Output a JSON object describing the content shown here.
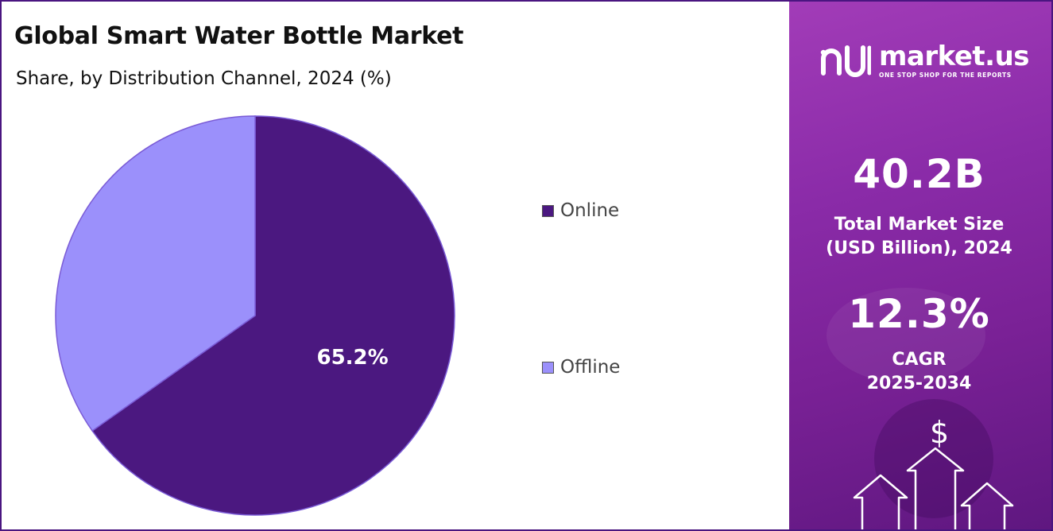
{
  "chart_data": {
    "type": "pie",
    "title": "Global Smart Water Bottle Market",
    "subtitle": "Share, by Distribution Channel, 2024 (%)",
    "series": [
      {
        "name": "Online",
        "value": 65.2,
        "color": "#4b1880",
        "label": "65.2%"
      },
      {
        "name": "Offline",
        "value": 34.8,
        "color": "#9b90fb",
        "label": ""
      }
    ],
    "legend_position": "right"
  },
  "sidebar": {
    "brand_name": "market.us",
    "brand_tagline": "ONE STOP SHOP FOR THE REPORTS",
    "market_size_value": "40.2B",
    "market_size_label_line1": "Total Market Size",
    "market_size_label_line2": "(USD Billion), 2024",
    "cagr_value": "12.3%",
    "cagr_label_line1": "CAGR",
    "cagr_label_line2": "2025-2034",
    "dollar_symbol": "$"
  },
  "colors": {
    "border": "#4a1580",
    "panel_start": "#a23cb8",
    "panel_end": "#5f1780"
  }
}
